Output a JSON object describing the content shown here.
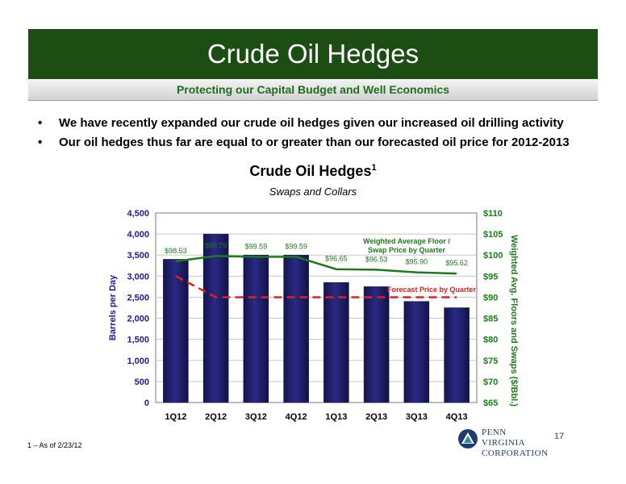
{
  "header": {
    "title": "Crude Oil Hedges",
    "subtitle": "Protecting our Capital Budget and Well Economics"
  },
  "bullets": [
    "We have recently expanded our crude oil hedges given our increased oil drilling activity",
    "Our oil hedges thus far are equal to or greater than our forecasted oil price for 2012-2013"
  ],
  "bullet_symbol": "•",
  "chart_heading": {
    "title": "Crude Oil Hedges",
    "superscript": "1",
    "subtitle": "Swaps and Collars"
  },
  "footnote": "1 – As of 2/23/12",
  "page_number": "17",
  "logo": {
    "line1": "PENN VIRGINIA",
    "line2": "CORPORATION",
    "icon": "triangle-mountain-icon"
  },
  "colors": {
    "header_bg": "#1c4d12",
    "subtitle_text": "#1f6d1a",
    "bar": "#2a2a82",
    "hedge_line": "#1e7a1a",
    "forecast_line": "#e02020",
    "left_axis": "#1a1a9c",
    "right_axis": "#1e7a1a"
  },
  "chart_data": {
    "type": "bar",
    "categories": [
      "1Q12",
      "2Q12",
      "3Q12",
      "4Q12",
      "1Q13",
      "2Q13",
      "3Q13",
      "4Q13"
    ],
    "series": [
      {
        "name": "",
        "axis": "left",
        "type": "bar",
        "values": [
          3400,
          4000,
          3500,
          3500,
          2850,
          2750,
          2400,
          2250
        ]
      },
      {
        "name": "Weighted Average Floor / Swap Price by Quarter",
        "axis": "right",
        "type": "line",
        "values": [
          98.53,
          99.79,
          99.59,
          99.59,
          96.65,
          96.53,
          95.9,
          95.62
        ],
        "labels": [
          "$98.53",
          "$99.79",
          "$99.59",
          "$99.59",
          "$96.65",
          "$96.53",
          "$95.90",
          "$95.62"
        ]
      },
      {
        "name": "Forecast Price by Quarter",
        "axis": "right",
        "type": "line",
        "style": "dashed",
        "values": [
          95,
          90,
          90,
          90,
          90,
          90,
          90,
          90
        ]
      }
    ],
    "ylabel": "Barrels per Day",
    "ylim": [
      0,
      4500
    ],
    "yticks": [
      "0",
      "500",
      "1,000",
      "1,500",
      "2,000",
      "2,500",
      "3,000",
      "3,500",
      "4,000",
      "4,500"
    ],
    "y2label": "Weighted Avg. Floors and Swaps ($/Bbl.)",
    "y2lim": [
      65,
      110
    ],
    "y2ticks": [
      "$65",
      "$70",
      "$75",
      "$80",
      "$85",
      "$90",
      "$95",
      "$100",
      "$105",
      "$110"
    ],
    "grid": true,
    "legend": "inline labels"
  }
}
